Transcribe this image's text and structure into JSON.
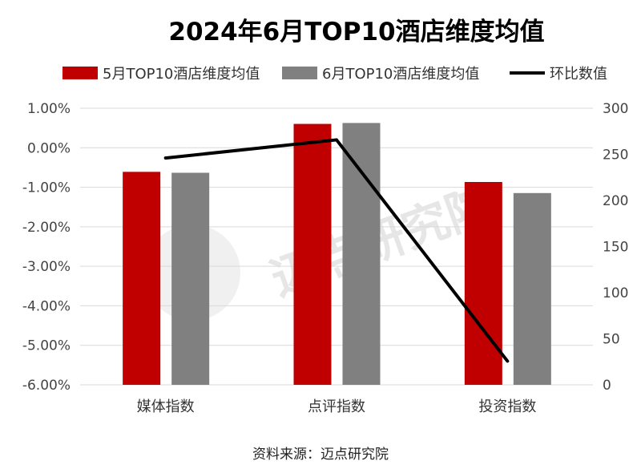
{
  "chart_data": {
    "type": "bar+line",
    "title": "2024年6月TOP10酒店维度均值",
    "categories": [
      "媒体指数",
      "点评指数",
      "投资指数"
    ],
    "series": [
      {
        "name": "5月TOP10酒店维度均值",
        "type": "bar",
        "axis": "right",
        "color": "#c00000",
        "values": [
          231,
          283,
          220
        ]
      },
      {
        "name": "6月TOP10酒店维度均值",
        "type": "bar",
        "axis": "right",
        "color": "#808080",
        "values": [
          230,
          284,
          208
        ]
      },
      {
        "name": "环比数值",
        "type": "line",
        "axis": "left",
        "color": "#000000",
        "values": [
          -0.26,
          0.2,
          -5.4
        ]
      }
    ],
    "left_axis": {
      "ylim": [
        -6,
        1
      ],
      "ticks": [
        "1.00%",
        "0.00%",
        "-1.00%",
        "-2.00%",
        "-3.00%",
        "-4.00%",
        "-5.00%",
        "-6.00%"
      ],
      "unit": "%"
    },
    "right_axis": {
      "ylim": [
        0,
        300
      ],
      "ticks": [
        "300",
        "250",
        "200",
        "150",
        "100",
        "50",
        "0"
      ]
    },
    "grid": true,
    "legend_placement": "top"
  },
  "source": "资料来源：迈点研究院",
  "watermark": "迈点研究院 MEADIN ACADEMY"
}
